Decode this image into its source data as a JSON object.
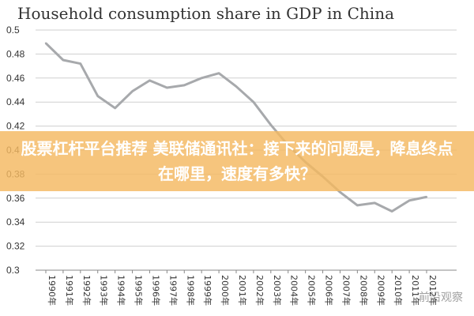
{
  "chart_data": {
    "type": "line",
    "title": "Household consumption share in GDP in China",
    "x": [
      "1990年",
      "1991年",
      "1992年",
      "1993年",
      "1994年",
      "1995年",
      "1996年",
      "1997年",
      "1998年",
      "1999年",
      "2000年",
      "2001年",
      "2002年",
      "2003年",
      "2004年",
      "2005年",
      "2006年",
      "2007年",
      "2008年",
      "2009年",
      "2010年",
      "2011年",
      "2012年"
    ],
    "series": [
      {
        "values": [
          0.489,
          0.475,
          0.472,
          0.445,
          0.435,
          0.449,
          0.458,
          0.452,
          0.454,
          0.46,
          0.464,
          0.453,
          0.44,
          0.421,
          0.404,
          0.39,
          0.378,
          0.365,
          0.354,
          0.356,
          0.349,
          0.358,
          0.361
        ],
        "color": "#a7a9ac"
      }
    ],
    "yticks": [
      "0.3",
      "0.32",
      "0.34",
      "0.36",
      "0.38",
      "0.4",
      "0.42",
      "0.44",
      "0.46",
      "0.48",
      "0.5"
    ],
    "ylim": [
      0.3,
      0.5
    ],
    "grid": true
  },
  "overlay": {
    "banner_text": "股票杠杆平台推荐 美联储通讯社：接下来的问题是，降息终点在哪里，速度有多快？",
    "banner_color": "#f4b860",
    "watermark": "前沿观察"
  }
}
